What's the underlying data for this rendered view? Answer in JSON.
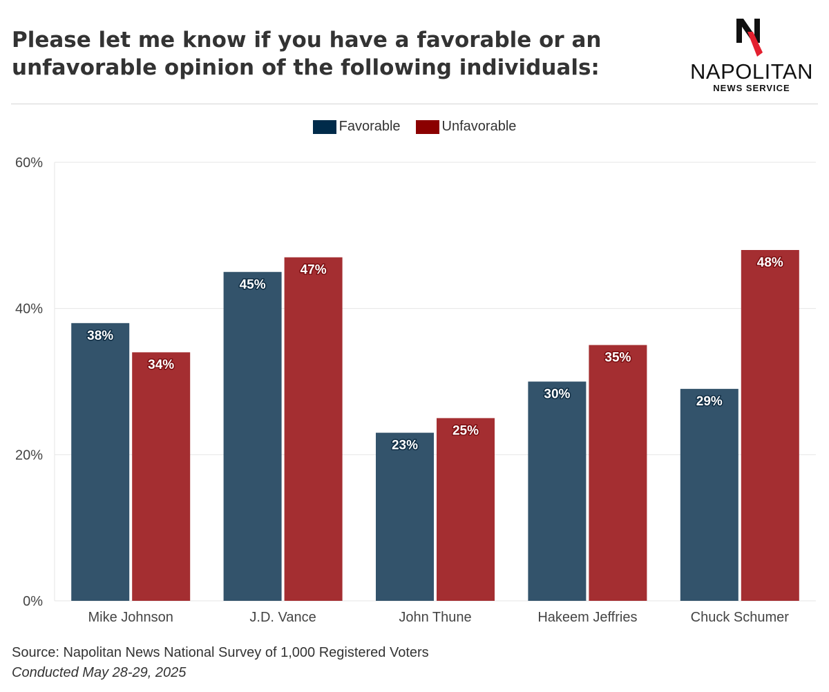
{
  "header": {
    "title_line1": "Please let me know if you have a favorable or an",
    "title_line2": "unfavorable opinion of the following individuals:"
  },
  "logo": {
    "mark_icon": "napolitan-n-logo-icon",
    "wordmark": "NAPOLITAN",
    "subline": "NEWS SERVICE",
    "colors": {
      "ink": "#111111",
      "accent": "#e3202f"
    }
  },
  "legend": {
    "items": [
      {
        "label": "Favorable",
        "color": "#002b4a"
      },
      {
        "label": "Unfavorable",
        "color": "#8b0000"
      }
    ]
  },
  "chart_data": {
    "type": "bar",
    "categories": [
      "Mike Johnson",
      "J.D. Vance",
      "John Thune",
      "Hakeem Jeffries",
      "Chuck Schumer"
    ],
    "series": [
      {
        "name": "Favorable",
        "values": [
          38,
          45,
          23,
          30,
          29
        ],
        "color": "#33536b"
      },
      {
        "name": "Unfavorable",
        "values": [
          34,
          47,
          25,
          35,
          48
        ],
        "color": "#a42e31"
      }
    ],
    "value_suffix": "%",
    "ylim": [
      0,
      60
    ],
    "yticks": [
      0,
      20,
      40,
      60
    ],
    "ytick_labels": [
      "0%",
      "20%",
      "40%",
      "60%"
    ],
    "grid": true,
    "legend_position": "top-center",
    "data_labels": true
  },
  "footer": {
    "source": "Source: Napolitan News National Survey of 1,000 Registered Voters",
    "note": "Conducted May 28-29, 2025"
  }
}
